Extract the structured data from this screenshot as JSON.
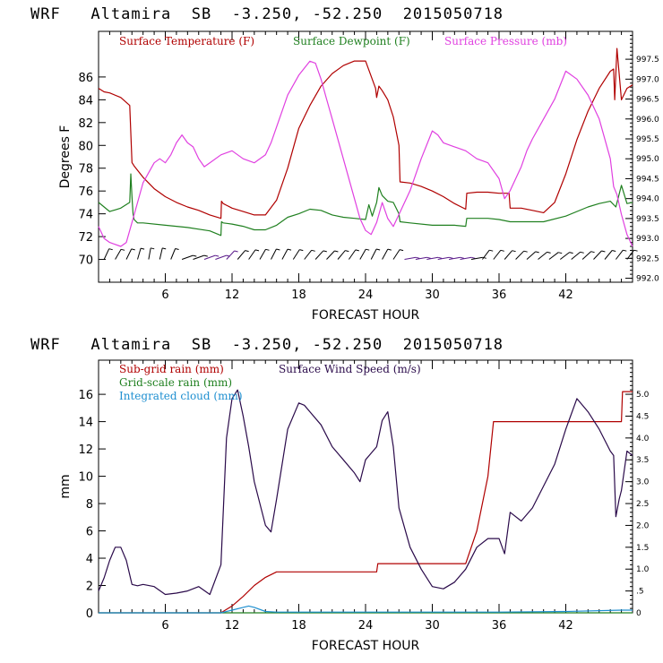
{
  "chart_data": [
    {
      "type": "line",
      "title": "WRF   Altamira  SB  -3.250, -52.250  2015050718",
      "xlabel": "FORECAST HOUR",
      "ylabel": "Degrees F",
      "xlim": [
        0,
        48
      ],
      "xticks": [
        "6",
        "12",
        "18",
        "24",
        "30",
        "36",
        "42"
      ],
      "ylim": [
        68,
        90
      ],
      "yticks": [
        "70",
        "72",
        "74",
        "76",
        "78",
        "80",
        "82",
        "84",
        "86"
      ],
      "y2lim": [
        991.9,
        998.2
      ],
      "y2ticks": [
        "992.0",
        "992.5",
        "993.0",
        "993.5",
        "994.0",
        "994.5",
        "995.0",
        "995.5",
        "996.0",
        "996.5",
        "997.0",
        "997.5"
      ],
      "wind_barbs": "row of wind barbs along y=70",
      "series": [
        {
          "name": "Surface Temperature (F)",
          "color": "#b00000",
          "axis": "left",
          "x": [
            0,
            0.5,
            1,
            2,
            2.8,
            3,
            3.2,
            4,
            5,
            6,
            7,
            8,
            9,
            10,
            11,
            11.05,
            11.2,
            12,
            13,
            14,
            15,
            16,
            17,
            18,
            19,
            20,
            21,
            22,
            23,
            24,
            24.9,
            25,
            25.2,
            25.5,
            26,
            26.5,
            27,
            27.1,
            28,
            29,
            30,
            31,
            32,
            33,
            33.1,
            34,
            35,
            36,
            36.9,
            37,
            38,
            39,
            40,
            41,
            42,
            43,
            44,
            45,
            46,
            46.3,
            46.4,
            46.6,
            47,
            47.5,
            48
          ],
          "values": [
            85,
            84.7,
            84.6,
            84.2,
            83.5,
            78.5,
            78.2,
            77.2,
            76.2,
            75.5,
            75.0,
            74.6,
            74.3,
            73.9,
            73.6,
            75.1,
            74.9,
            74.5,
            74.2,
            73.9,
            73.9,
            75.2,
            78.0,
            81.5,
            83.5,
            85.2,
            86.3,
            87.0,
            87.4,
            87.4,
            85.0,
            84.2,
            85.2,
            84.8,
            84.0,
            82.5,
            80.0,
            76.8,
            76.7,
            76.4,
            76.0,
            75.5,
            74.9,
            74.4,
            75.8,
            75.9,
            75.9,
            75.8,
            75.8,
            74.5,
            74.5,
            74.3,
            74.1,
            75.0,
            77.5,
            80.5,
            83.0,
            85.0,
            86.5,
            86.7,
            84.0,
            88.5,
            84.0,
            85.0,
            85.3
          ]
        },
        {
          "name": "Surface Dewpoint (F)",
          "color": "#208020",
          "axis": "left",
          "x": [
            0,
            1,
            2,
            2.8,
            2.9,
            3.0,
            3.1,
            3.2,
            3.5,
            4,
            6,
            8,
            10,
            11,
            11.05,
            11.2,
            12,
            13,
            14,
            15,
            16,
            17,
            18,
            19,
            20,
            21,
            22,
            23,
            24,
            24.3,
            24.6,
            25,
            25.2,
            25.5,
            26,
            26.5,
            27,
            27.1,
            28,
            30,
            32,
            33,
            33.1,
            34,
            35,
            36,
            37,
            38,
            40,
            42,
            44,
            45,
            46,
            46.5,
            47,
            47.5,
            48
          ],
          "values": [
            75.0,
            74.2,
            74.5,
            75.0,
            77.5,
            75.5,
            74.0,
            73.5,
            73.2,
            73.2,
            73.0,
            72.8,
            72.5,
            72.1,
            73.3,
            73.2,
            73.1,
            72.9,
            72.6,
            72.6,
            73.0,
            73.7,
            74.0,
            74.4,
            74.3,
            73.9,
            73.7,
            73.6,
            73.5,
            74.8,
            73.8,
            75.0,
            76.3,
            75.6,
            75.1,
            75.0,
            74.0,
            73.3,
            73.2,
            73.0,
            73.0,
            72.9,
            73.6,
            73.6,
            73.6,
            73.5,
            73.3,
            73.3,
            73.3,
            73.8,
            74.6,
            74.9,
            75.1,
            74.6,
            76.5,
            74.9,
            75.0
          ]
        },
        {
          "name": "Surface Pressure (mb)",
          "color": "#e040e0",
          "axis": "right",
          "x": [
            0,
            0.5,
            1,
            2,
            2.5,
            3,
            3.5,
            4,
            5,
            5.5,
            6,
            6.5,
            7,
            7.5,
            8,
            8.5,
            9,
            9.5,
            10,
            11,
            12,
            13,
            14,
            15,
            15.5,
            16,
            16.5,
            17,
            18,
            19,
            19.5,
            20,
            20.5,
            21,
            22,
            23,
            23.5,
            24,
            24.5,
            25,
            25.5,
            26,
            26.5,
            27,
            28,
            29,
            30,
            30.5,
            31,
            32,
            33,
            34,
            35,
            36,
            36.5,
            37,
            37.5,
            38,
            38.5,
            39,
            40,
            41,
            42,
            43,
            44,
            45,
            46,
            46.3,
            46.6,
            47,
            47.5,
            48
          ],
          "values": [
            993.3,
            993.0,
            992.9,
            992.8,
            992.9,
            993.4,
            993.9,
            994.4,
            994.9,
            995.0,
            994.9,
            995.1,
            995.4,
            995.6,
            995.4,
            995.3,
            995.0,
            994.8,
            994.9,
            995.1,
            995.2,
            995.0,
            994.9,
            995.1,
            995.4,
            995.8,
            996.2,
            996.6,
            997.1,
            997.45,
            997.4,
            997.0,
            996.5,
            996.0,
            995.0,
            994.0,
            993.5,
            993.2,
            993.1,
            993.4,
            993.9,
            993.5,
            993.3,
            993.6,
            994.2,
            995.0,
            995.7,
            995.6,
            995.4,
            995.3,
            995.2,
            995.0,
            994.9,
            994.5,
            994.0,
            994.2,
            994.5,
            994.8,
            995.2,
            995.5,
            996.0,
            996.5,
            997.2,
            997.0,
            996.6,
            996.0,
            995.0,
            994.3,
            994.1,
            993.6,
            993.1,
            992.8
          ]
        }
      ]
    },
    {
      "type": "line",
      "title": "WRF   Altamira  SB  -3.250, -52.250  2015050718",
      "xlabel": "FORECAST HOUR",
      "ylabel": "mm",
      "xlim": [
        0,
        48
      ],
      "xticks": [
        "6",
        "12",
        "18",
        "24",
        "30",
        "36",
        "42"
      ],
      "ylim": [
        0,
        18.5
      ],
      "yticks": [
        "0",
        "2",
        "4",
        "6",
        "8",
        "10",
        "12",
        "14",
        "16"
      ],
      "y2lim": [
        0,
        5.78
      ],
      "y2ticks": [
        "0",
        ".5",
        "1.0",
        "1.5",
        "2.0",
        "2.5",
        "3.0",
        "3.5",
        "4.0",
        "4.5",
        "5.0"
      ],
      "series": [
        {
          "name": "Sub-grid rain (mm)",
          "color": "#b00000",
          "axis": "left",
          "x": [
            0,
            11,
            12,
            13,
            14,
            15,
            16,
            20,
            25,
            25.1,
            33,
            34,
            35,
            35.5,
            37,
            42,
            47,
            47.1,
            48
          ],
          "values": [
            0,
            0,
            0.5,
            1.2,
            2.0,
            2.6,
            3.0,
            3.0,
            3.0,
            3.6,
            3.6,
            6.0,
            10.0,
            14.0,
            14.0,
            14.0,
            14.0,
            16.2,
            16.2
          ]
        },
        {
          "name": "Grid-scale rain (mm)",
          "color": "#208020",
          "axis": "left",
          "x": [
            0,
            48
          ],
          "values": [
            0,
            0
          ]
        },
        {
          "name": "Integrated cloud (mm)",
          "color": "#1e8fd0",
          "axis": "left",
          "x": [
            0,
            11,
            12,
            13,
            13.5,
            14,
            15,
            16,
            24,
            30,
            36,
            42,
            47,
            48
          ],
          "values": [
            0,
            0,
            0.2,
            0.4,
            0.5,
            0.4,
            0.1,
            0.05,
            0.05,
            0.05,
            0.05,
            0.1,
            0.2,
            0.2
          ]
        },
        {
          "name": "Surface Wind Speed (m/s)",
          "color": "#2a0a4a",
          "axis": "right",
          "x": [
            0,
            0.5,
            1,
            1.5,
            2,
            2.5,
            3,
            3.5,
            4,
            5,
            6,
            7,
            8,
            9,
            10,
            11,
            11.5,
            12,
            12.5,
            13,
            13.5,
            14,
            15,
            15.5,
            16,
            16.5,
            17,
            18,
            18.5,
            19,
            20,
            21,
            22,
            23,
            23.5,
            24,
            25,
            25.5,
            26,
            26.5,
            27,
            28,
            29,
            30,
            31,
            32,
            33,
            34,
            35,
            36,
            36.5,
            37,
            38,
            39,
            40,
            41,
            42,
            43,
            44,
            45,
            46,
            46.3,
            46.5,
            46.8,
            47,
            47.5,
            48
          ],
          "values": [
            0.5,
            0.8,
            1.2,
            1.5,
            1.5,
            1.2,
            0.65,
            0.62,
            0.65,
            0.6,
            0.42,
            0.45,
            0.5,
            0.6,
            0.42,
            1.1,
            4.0,
            4.9,
            5.1,
            4.5,
            3.8,
            3.0,
            2.0,
            1.85,
            2.6,
            3.4,
            4.2,
            4.8,
            4.75,
            4.6,
            4.3,
            3.8,
            3.5,
            3.2,
            3.0,
            3.5,
            3.8,
            4.4,
            4.6,
            3.8,
            2.4,
            1.5,
            1.0,
            0.6,
            0.55,
            0.7,
            1.0,
            1.5,
            1.7,
            1.7,
            1.35,
            2.3,
            2.1,
            2.4,
            2.9,
            3.4,
            4.2,
            4.9,
            4.6,
            4.2,
            3.7,
            3.6,
            2.2,
            2.6,
            2.8,
            3.7,
            3.6
          ]
        }
      ]
    }
  ]
}
